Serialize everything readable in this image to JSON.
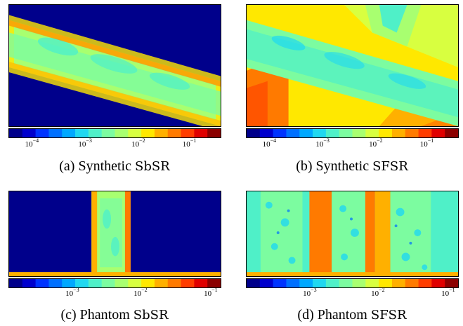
{
  "colormap": [
    "#00008b",
    "#0000cd",
    "#0033ff",
    "#0070ff",
    "#00a8ff",
    "#20d8f0",
    "#4ff0c8",
    "#7cfca0",
    "#a8ff70",
    "#d8ff40",
    "#ffe800",
    "#ffb000",
    "#ff7a00",
    "#ff3c00",
    "#e00000",
    "#8b0000"
  ],
  "panels": [
    {
      "id": "a",
      "caption_prefix": "(a) Synthetic ",
      "caption_method": "SbSR",
      "ticks": [
        {
          "base": "10",
          "exp": "−4",
          "pos": 0.11
        },
        {
          "base": "10",
          "exp": "−3",
          "pos": 0.36
        },
        {
          "base": "10",
          "exp": "−2",
          "pos": 0.61
        },
        {
          "base": "10",
          "exp": "−1",
          "pos": 0.85
        }
      ]
    },
    {
      "id": "b",
      "caption_prefix": "(b) Synthetic ",
      "caption_method": "SFSR",
      "ticks": [
        {
          "base": "10",
          "exp": "−4",
          "pos": 0.11
        },
        {
          "base": "10",
          "exp": "−3",
          "pos": 0.36
        },
        {
          "base": "10",
          "exp": "−2",
          "pos": 0.61
        },
        {
          "base": "10",
          "exp": "−1",
          "pos": 0.85
        }
      ]
    },
    {
      "id": "c",
      "caption_prefix": "(c) Phantom ",
      "caption_method": "SbSR",
      "ticks": [
        {
          "base": "10",
          "exp": "−3",
          "pos": 0.3
        },
        {
          "base": "10",
          "exp": "−2",
          "pos": 0.62
        },
        {
          "base": "10",
          "exp": "−1",
          "pos": 0.95
        }
      ]
    },
    {
      "id": "d",
      "caption_prefix": "(d) Phantom ",
      "caption_method": "SFSR",
      "ticks": [
        {
          "base": "10",
          "exp": "−3",
          "pos": 0.3
        },
        {
          "base": "10",
          "exp": "−2",
          "pos": 0.62
        },
        {
          "base": "10",
          "exp": "−1",
          "pos": 0.95
        }
      ]
    }
  ]
}
